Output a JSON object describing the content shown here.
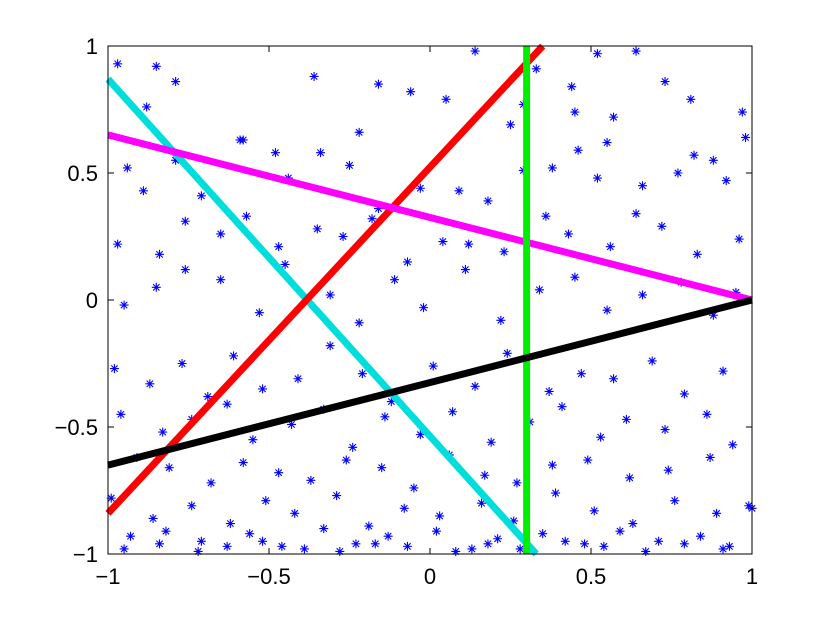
{
  "chart_data": {
    "type": "scatter",
    "title": "",
    "xlabel": "",
    "ylabel": "",
    "xlim": [
      -1,
      1
    ],
    "ylim": [
      -1,
      1
    ],
    "x_ticks": [
      -1,
      -0.5,
      0,
      0.5,
      1
    ],
    "y_ticks": [
      -1,
      -0.5,
      0,
      0.5,
      1
    ],
    "x_tick_labels": [
      "−1",
      "−0.5",
      "0",
      "0.5",
      "1"
    ],
    "y_tick_labels": [
      "−1",
      "−0.5",
      "0",
      "0.5",
      "1"
    ],
    "grid": false,
    "legend": "none",
    "marker": "asterisk",
    "marker_color": "#0000ff",
    "lines": [
      {
        "color": "#00dddd",
        "x": [
          -1.0,
          0.33
        ],
        "y": [
          0.87,
          -1.0
        ]
      },
      {
        "color": "#ff0000",
        "x": [
          -1.0,
          0.35
        ],
        "y": [
          -0.84,
          1.0
        ]
      },
      {
        "color": "#ff00ff",
        "x": [
          -1.0,
          1.0
        ],
        "y": [
          0.65,
          0.0
        ]
      },
      {
        "color": "#00ee00",
        "x": [
          0.3,
          0.3
        ],
        "y": [
          -1.0,
          1.0
        ]
      },
      {
        "color": "#000000",
        "x": [
          -1.0,
          1.0
        ],
        "y": [
          -0.65,
          0.0
        ]
      }
    ],
    "points": {
      "x": [
        -0.97,
        -0.88,
        -0.85,
        -0.79,
        -0.59,
        -0.48,
        -0.36,
        -0.22,
        -0.16,
        -0.06,
        0.05,
        0.14,
        0.25,
        0.29,
        0.33,
        0.44,
        0.45,
        0.52,
        0.57,
        0.64,
        0.73,
        0.81,
        0.88,
        0.97,
        -0.94,
        -0.89,
        -0.79,
        -0.71,
        -0.58,
        -0.44,
        -0.34,
        -0.25,
        -0.16,
        -0.03,
        0.09,
        0.18,
        0.29,
        0.38,
        0.46,
        0.52,
        0.55,
        0.66,
        0.77,
        0.82,
        0.92,
        0.98,
        -0.97,
        -0.84,
        -0.76,
        -0.65,
        -0.57,
        -0.47,
        -0.35,
        -0.27,
        -0.18,
        -0.07,
        0.04,
        0.12,
        0.23,
        0.36,
        0.43,
        0.56,
        0.64,
        0.72,
        0.83,
        0.96,
        -0.95,
        -0.85,
        -0.76,
        -0.65,
        -0.53,
        -0.45,
        -0.31,
        -0.22,
        -0.11,
        -0.02,
        0.11,
        0.22,
        0.34,
        0.45,
        0.55,
        0.66,
        0.78,
        0.88,
        0.95,
        -0.98,
        -0.87,
        -0.77,
        -0.69,
        -0.61,
        -0.52,
        -0.41,
        -0.31,
        -0.21,
        -0.12,
        0.01,
        0.14,
        0.24,
        0.37,
        0.47,
        0.57,
        0.69,
        0.79,
        0.91,
        -0.96,
        -0.83,
        -0.74,
        -0.63,
        -0.55,
        -0.43,
        -0.33,
        -0.24,
        -0.14,
        -0.03,
        0.07,
        0.19,
        0.31,
        0.41,
        0.53,
        0.61,
        0.73,
        0.86,
        0.94,
        -0.91,
        -0.81,
        -0.68,
        -0.58,
        -0.47,
        -0.37,
        -0.26,
        -0.15,
        -0.05,
        0.06,
        0.17,
        0.27,
        0.38,
        0.49,
        0.62,
        0.74,
        0.87,
        -0.99,
        -0.86,
        -0.74,
        -0.62,
        -0.51,
        -0.42,
        -0.29,
        -0.19,
        -0.08,
        0.03,
        0.16,
        0.26,
        0.39,
        0.51,
        0.63,
        0.76,
        0.89,
        0.99,
        -0.93,
        -0.82,
        -0.71,
        -0.56,
        -0.46,
        -0.33,
        -0.23,
        -0.13,
        0.02,
        0.13,
        0.21,
        0.35,
        0.48,
        0.59,
        0.71,
        0.84,
        0.93,
        -0.95,
        -0.84,
        -0.72,
        -0.63,
        -0.52,
        -0.39,
        -0.28,
        -0.17,
        -0.07,
        0.08,
        0.18,
        0.28,
        0.42,
        0.54,
        0.67,
        0.79,
        0.91,
        1.0
      ],
      "y": [
        0.93,
        0.76,
        0.92,
        0.86,
        0.63,
        0.58,
        0.88,
        0.66,
        0.85,
        0.82,
        0.79,
        0.98,
        0.69,
        0.77,
        0.91,
        0.84,
        0.74,
        0.97,
        0.72,
        0.98,
        0.86,
        0.79,
        0.55,
        0.74,
        0.52,
        0.43,
        0.55,
        0.41,
        0.63,
        0.48,
        0.58,
        0.53,
        0.36,
        0.44,
        0.43,
        0.39,
        0.51,
        0.52,
        0.59,
        0.48,
        0.62,
        0.45,
        0.5,
        0.57,
        0.47,
        0.64,
        0.22,
        0.18,
        0.31,
        0.26,
        0.33,
        0.21,
        0.28,
        0.25,
        0.32,
        0.15,
        0.23,
        0.22,
        0.19,
        0.33,
        0.26,
        0.21,
        0.34,
        0.29,
        0.18,
        0.24,
        -0.02,
        0.05,
        0.12,
        0.08,
        -0.05,
        0.14,
        0.02,
        -0.09,
        0.08,
        -0.03,
        0.12,
        -0.08,
        0.04,
        0.09,
        -0.04,
        0.02,
        0.07,
        -0.06,
        0.03,
        -0.27,
        -0.33,
        -0.25,
        -0.38,
        -0.22,
        -0.35,
        -0.31,
        -0.18,
        -0.29,
        -0.4,
        -0.26,
        -0.34,
        -0.21,
        -0.36,
        -0.29,
        -0.31,
        -0.24,
        -0.37,
        -0.28,
        -0.45,
        -0.52,
        -0.47,
        -0.41,
        -0.55,
        -0.49,
        -0.43,
        -0.58,
        -0.46,
        -0.53,
        -0.44,
        -0.56,
        -0.48,
        -0.42,
        -0.54,
        -0.47,
        -0.51,
        -0.45,
        -0.57,
        -0.62,
        -0.66,
        -0.72,
        -0.64,
        -0.68,
        -0.71,
        -0.63,
        -0.66,
        -0.74,
        -0.61,
        -0.69,
        -0.72,
        -0.65,
        -0.63,
        -0.7,
        -0.67,
        -0.62,
        -0.78,
        -0.86,
        -0.81,
        -0.88,
        -0.79,
        -0.84,
        -0.77,
        -0.89,
        -0.82,
        -0.85,
        -0.8,
        -0.87,
        -0.76,
        -0.83,
        -0.88,
        -0.79,
        -0.84,
        -0.81,
        -0.93,
        -0.91,
        -0.95,
        -0.92,
        -0.97,
        -0.9,
        -0.96,
        -0.93,
        -0.91,
        -0.98,
        -0.94,
        -0.92,
        -0.96,
        -0.91,
        -0.95,
        -0.93,
        -0.97,
        -0.98,
        -0.96,
        -0.99,
        -0.97,
        -0.95,
        -0.98,
        -0.99,
        -0.96,
        -0.97,
        -0.99,
        -0.96,
        -0.98,
        -0.95,
        -0.97,
        -0.99,
        -0.96,
        -0.98,
        -0.82
      ]
    }
  }
}
